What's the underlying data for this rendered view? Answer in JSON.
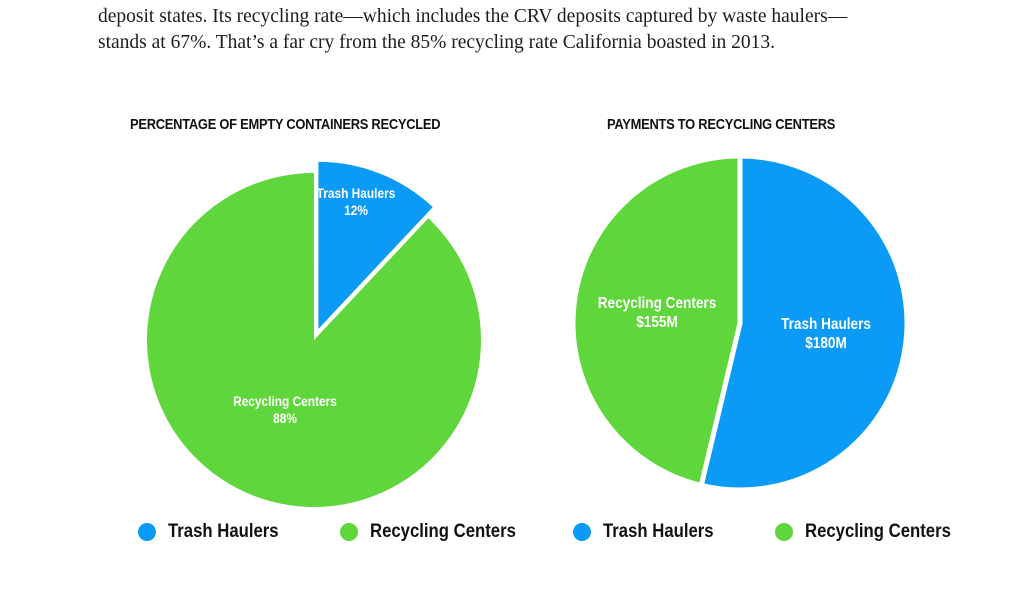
{
  "intro": {
    "line1": "deposit states.  Its recycling rate—which includes the CRV deposits captured by waste haulers—",
    "line2": "stands at 67%. That’s a far cry from the 85% recycling rate California boasted in 2013."
  },
  "colors": {
    "trash_haulers": "#0b9bf6",
    "recycling_centers": "#5ed63c"
  },
  "chart_data": [
    {
      "type": "pie",
      "title": "PERCENTAGE OF EMPTY CONTAINERS RECYCLED",
      "categories": [
        "Trash Haulers",
        "Recycling Centers"
      ],
      "values": [
        12,
        88
      ],
      "value_labels": [
        "12%",
        "88%"
      ],
      "exploded": [
        "Trash Haulers"
      ],
      "legend": {
        "position": "bottom",
        "entries": [
          "Trash Haulers",
          "Recycling Centers"
        ]
      }
    },
    {
      "type": "pie",
      "title": "PAYMENTS TO RECYCLING CENTERS",
      "categories": [
        "Trash Haulers",
        "Recycling Centers"
      ],
      "values": [
        180,
        155
      ],
      "value_labels": [
        "$180M",
        "$155M"
      ],
      "unit": "$M",
      "legend": {
        "position": "bottom",
        "entries": [
          "Trash Haulers",
          "Recycling Centers"
        ]
      }
    }
  ]
}
